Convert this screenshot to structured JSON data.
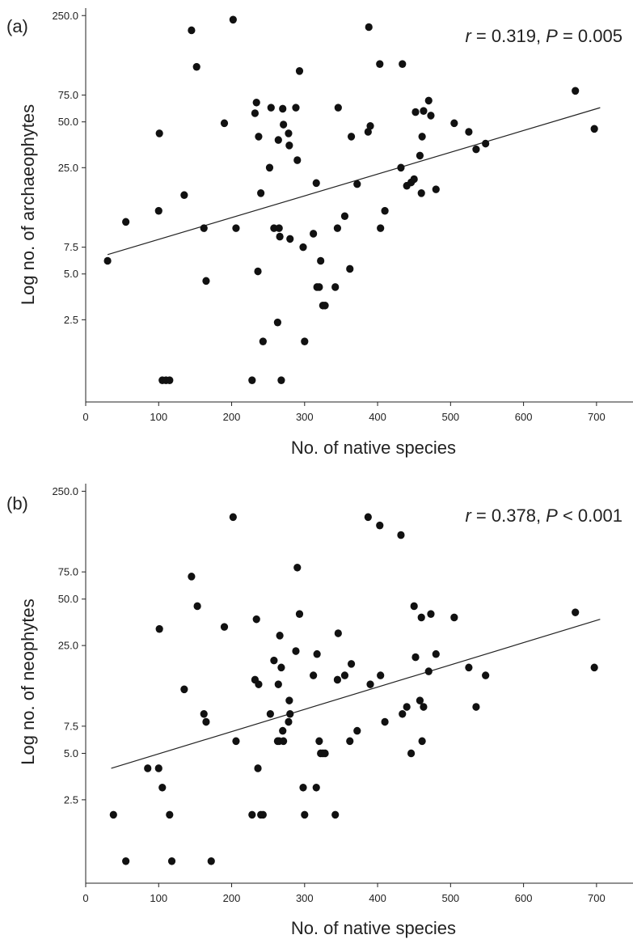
{
  "chart_data": [
    {
      "type": "scatter",
      "panel_label": "(a)",
      "stat_r_sym": "r",
      "stat_r_text": " = 0.319, ",
      "stat_p_sym": "P",
      "stat_p_text": " = 0.005",
      "xlabel": "No. of native species",
      "ylabel": "Log no. of archaeophytes",
      "xlim": [
        0,
        750
      ],
      "xticks": [
        0,
        100,
        200,
        300,
        400,
        500,
        600,
        700
      ],
      "yscale": "log",
      "ylim": [
        0.72,
        280
      ],
      "yticks": [
        2.5,
        5.0,
        7.5,
        25.0,
        50.0,
        75.0,
        250.0
      ],
      "ytick_labels": [
        "2.5",
        "5.0",
        "7.5",
        "25.0",
        "50.0",
        "75.0",
        "250.0"
      ],
      "grid": false,
      "trend": [
        [
          30,
          6.7
        ],
        [
          705,
          62
        ]
      ],
      "x": [
        30,
        55,
        100,
        101,
        105,
        110,
        115,
        135,
        145,
        152,
        162,
        165,
        190,
        202,
        206,
        228,
        232,
        234,
        236,
        237,
        240,
        243,
        252,
        254,
        258,
        263,
        264,
        265,
        266,
        268,
        270,
        271,
        278,
        279,
        280,
        288,
        290,
        293,
        298,
        300,
        312,
        316,
        317,
        320,
        322,
        325,
        328,
        342,
        345,
        346,
        355,
        362,
        364,
        372,
        387,
        388,
        390,
        403,
        404,
        410,
        432,
        434,
        440,
        446,
        450,
        452,
        458,
        460,
        461,
        463,
        470,
        473,
        480,
        505,
        525,
        535,
        548,
        671,
        697
      ],
      "y": [
        6.1,
        11,
        13,
        42,
        1,
        1,
        1,
        16.5,
        200,
        115,
        10,
        4.5,
        49,
        235,
        10,
        1,
        57,
        67,
        5.2,
        40,
        17,
        1.8,
        25,
        62,
        10,
        2.4,
        38,
        10,
        8.8,
        1,
        61,
        48,
        42,
        35,
        8.5,
        62,
        28,
        108,
        7.5,
        1.8,
        9.2,
        19.8,
        4.1,
        4.1,
        6.1,
        3.1,
        3.1,
        4.1,
        10,
        62,
        12,
        5.4,
        40,
        19.5,
        43,
        210,
        47,
        120,
        10,
        13,
        25,
        120,
        19,
        20,
        21,
        58,
        30,
        17,
        40,
        59,
        69,
        55,
        18,
        49,
        43,
        33,
        36,
        80,
        45
      ]
    },
    {
      "type": "scatter",
      "panel_label": "(b)",
      "stat_r_sym": "r",
      "stat_r_text": " = 0.378, ",
      "stat_p_sym": "P",
      "stat_p_text": " < 0.001",
      "xlabel": "No. of native species",
      "ylabel": "Log no. of neophytes",
      "xlim": [
        0,
        750
      ],
      "xticks": [
        0,
        100,
        200,
        300,
        400,
        500,
        600,
        700
      ],
      "yscale": "log",
      "ylim": [
        0.72,
        280
      ],
      "yticks": [
        2.5,
        5.0,
        7.5,
        25.0,
        50.0,
        75.0,
        250.0
      ],
      "ytick_labels": [
        "2.5",
        "5.0",
        "7.5",
        "25.0",
        "50.0",
        "75.0",
        "250.0"
      ],
      "grid": false,
      "trend": [
        [
          35,
          4.0
        ],
        [
          705,
          37
        ]
      ],
      "x": [
        38,
        55,
        85,
        100,
        101,
        105,
        115,
        118,
        135,
        145,
        153,
        162,
        165,
        172,
        190,
        202,
        206,
        228,
        232,
        234,
        236,
        237,
        240,
        243,
        253,
        258,
        263,
        264,
        265,
        266,
        268,
        270,
        271,
        278,
        279,
        280,
        288,
        290,
        293,
        298,
        300,
        312,
        316,
        317,
        320,
        322,
        325,
        328,
        342,
        345,
        346,
        355,
        362,
        364,
        372,
        387,
        390,
        403,
        404,
        410,
        432,
        434,
        440,
        446,
        450,
        452,
        458,
        460,
        461,
        463,
        470,
        473,
        480,
        505,
        525,
        535,
        548,
        671,
        697
      ],
      "y": [
        2,
        1,
        4,
        4,
        32,
        3,
        2,
        1,
        13,
        70,
        45,
        9,
        8,
        1,
        33,
        170,
        6,
        2,
        15,
        37,
        4,
        14,
        2,
        2,
        9,
        20,
        6,
        14,
        6,
        29,
        18,
        7,
        6,
        8,
        11,
        9,
        23,
        80,
        40,
        3,
        2,
        16,
        3,
        22,
        6,
        5,
        5,
        5,
        2,
        15,
        30,
        16,
        6,
        19,
        7,
        170,
        14,
        150,
        16,
        8,
        130,
        9,
        10,
        5,
        45,
        21,
        11,
        38,
        6,
        10,
        17,
        40,
        22,
        38,
        18,
        10,
        16,
        41,
        18
      ]
    }
  ]
}
